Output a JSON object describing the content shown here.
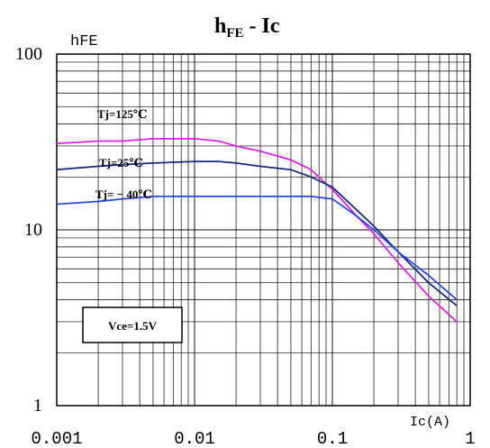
{
  "chart_data": {
    "type": "line",
    "title": {
      "main": "h",
      "sub": "FE",
      "rest": " - Ic"
    },
    "ylabel": "hFE",
    "xlabel": "Ic(A)",
    "x_scale": "log",
    "y_scale": "log",
    "xlim": [
      0.001,
      1
    ],
    "ylim": [
      1,
      100
    ],
    "x_ticks": [
      "0.001",
      "0.01",
      "0.1",
      "1"
    ],
    "y_ticks": [
      "1",
      "10",
      "100"
    ],
    "grid": true,
    "annotation": "Vce=1.5V",
    "series": [
      {
        "name": "Tj=125℃",
        "color": "#e020e0",
        "x": [
          0.001,
          0.002,
          0.003,
          0.005,
          0.01,
          0.015,
          0.02,
          0.03,
          0.05,
          0.07,
          0.1,
          0.15,
          0.2,
          0.3,
          0.5,
          0.8
        ],
        "y": [
          31,
          32,
          32,
          33,
          33,
          32,
          30,
          28,
          25,
          22,
          17,
          12,
          9.5,
          6.5,
          4.2,
          3.0
        ]
      },
      {
        "name": "Tj=25℃",
        "color": "#1a2a7a",
        "x": [
          0.001,
          0.002,
          0.003,
          0.005,
          0.01,
          0.015,
          0.02,
          0.03,
          0.05,
          0.07,
          0.1,
          0.15,
          0.2,
          0.3,
          0.5,
          0.8
        ],
        "y": [
          22,
          23,
          23.5,
          24,
          24.5,
          24.5,
          24,
          23,
          22,
          20,
          17.5,
          13,
          10.5,
          7.5,
          5,
          3.7
        ]
      },
      {
        "name": "Tj= − 40℃",
        "color": "#2a4adf",
        "x": [
          0.001,
          0.002,
          0.003,
          0.005,
          0.01,
          0.02,
          0.03,
          0.05,
          0.07,
          0.1,
          0.15,
          0.2,
          0.3,
          0.5,
          0.8
        ],
        "y": [
          14,
          14.5,
          15,
          15.5,
          15.5,
          15.5,
          15.5,
          15.5,
          15.5,
          15,
          12,
          10,
          7.5,
          5.5,
          4.0
        ]
      }
    ]
  }
}
